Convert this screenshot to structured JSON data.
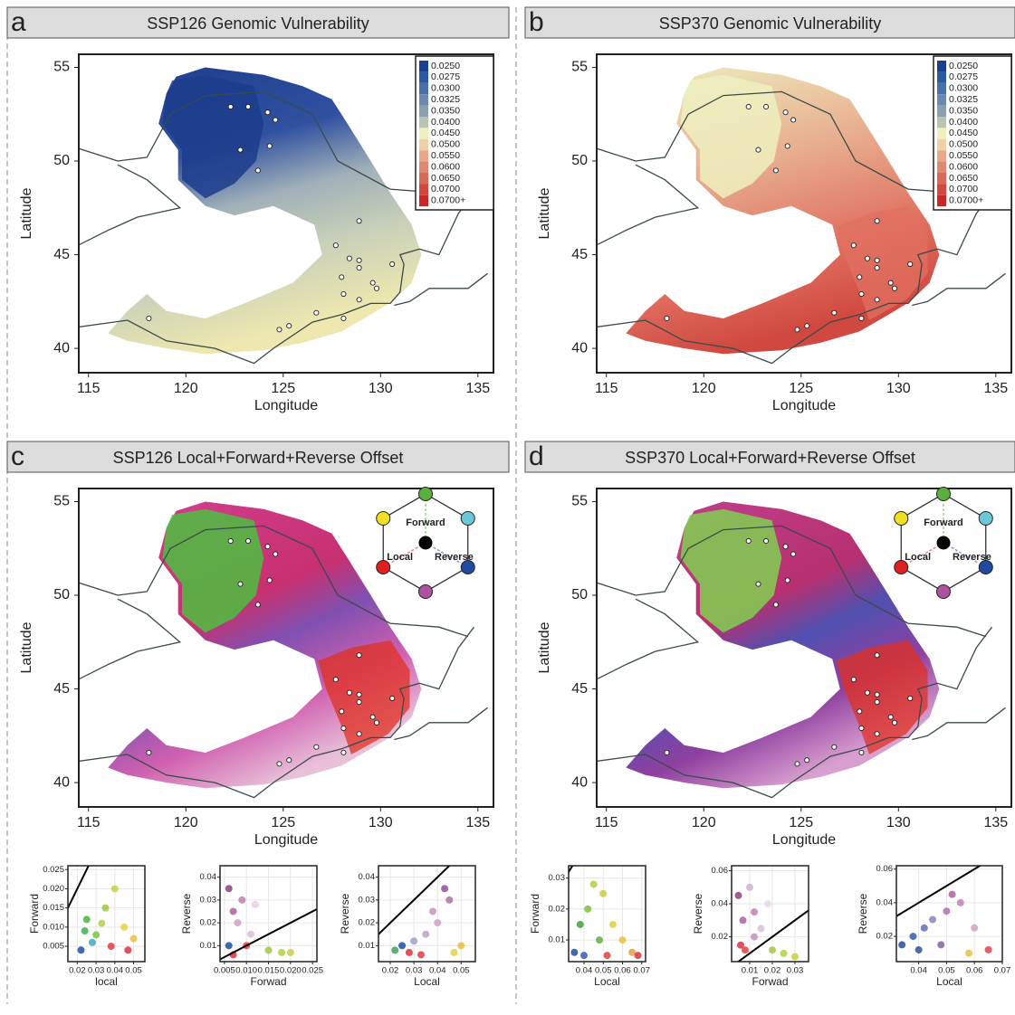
{
  "chart_data": [
    {
      "type": "map",
      "letter": "a",
      "title": "SSP126 Genomic Vulnerability",
      "xlabel": "Longitude",
      "ylabel": "Latitude",
      "xlim": [
        114.5,
        135.8
      ],
      "ylim": [
        38.7,
        55.7
      ],
      "xticks": [
        115,
        120,
        125,
        130,
        135
      ],
      "yticks": [
        40,
        45,
        50,
        55
      ],
      "sites": {
        "x": [
          122.3,
          123.2,
          124.2,
          124.6,
          122.8,
          124.3,
          123.7,
          128.9,
          127.7,
          128.4,
          128.9,
          128.9,
          128.0,
          130.6,
          128.1,
          129.6,
          129.8,
          128.9,
          118.1,
          125.3,
          124.8,
          128.1,
          126.7
        ],
        "y": [
          52.9,
          52.9,
          52.6,
          52.2,
          50.6,
          50.8,
          49.5,
          46.8,
          45.5,
          44.8,
          44.7,
          44.3,
          43.8,
          44.5,
          42.9,
          43.5,
          43.2,
          42.6,
          41.6,
          41.2,
          41.0,
          41.6,
          41.9
        ]
      },
      "legend": [
        {
          "label": "0.0250",
          "color": "#1a3f8f"
        },
        {
          "label": "0.0275",
          "color": "#2a5aa0"
        },
        {
          "label": "0.0300",
          "color": "#4a70a8"
        },
        {
          "label": "0.0325",
          "color": "#6a88b0"
        },
        {
          "label": "0.0350",
          "color": "#8aa0b0"
        },
        {
          "label": "0.0400",
          "color": "#b8c4b0"
        },
        {
          "label": "0.0450",
          "color": "#eef0c0"
        },
        {
          "label": "0.0500",
          "color": "#f0d0a8"
        },
        {
          "label": "0.0550",
          "color": "#e8a888"
        },
        {
          "label": "0.0600",
          "color": "#e08870"
        },
        {
          "label": "0.0650",
          "color": "#d86858"
        },
        {
          "label": "0.0700",
          "color": "#d04840"
        },
        {
          "label": "0.0700+",
          "color": "#c82828"
        }
      ]
    },
    {
      "type": "map",
      "letter": "b",
      "title": "SSP370  Genomic Vulnerability",
      "xlabel": "Longitude",
      "ylabel": "Latitude",
      "xlim": [
        114.5,
        135.8
      ],
      "ylim": [
        38.7,
        55.7
      ],
      "xticks": [
        115,
        120,
        125,
        130,
        135
      ],
      "yticks": [
        40,
        45,
        50,
        55
      ],
      "legend": [
        {
          "label": "0.0250",
          "color": "#1a3f8f"
        },
        {
          "label": "0.0275",
          "color": "#2a5aa0"
        },
        {
          "label": "0.0300",
          "color": "#4a70a8"
        },
        {
          "label": "0.0325",
          "color": "#6a88b0"
        },
        {
          "label": "0.0350",
          "color": "#8aa0b0"
        },
        {
          "label": "0.0400",
          "color": "#b8c4b0"
        },
        {
          "label": "0.0450",
          "color": "#eef0c0"
        },
        {
          "label": "0.0500",
          "color": "#f0d0a8"
        },
        {
          "label": "0.0550",
          "color": "#e8a888"
        },
        {
          "label": "0.0600",
          "color": "#e08870"
        },
        {
          "label": "0.0650",
          "color": "#d86858"
        },
        {
          "label": "0.0700",
          "color": "#d04840"
        },
        {
          "label": "0.0700+",
          "color": "#c82828"
        }
      ]
    },
    {
      "type": "map",
      "letter": "c",
      "title": "SSP126 Local+Forward+Reverse Offset",
      "xlabel": "Longitude",
      "ylabel": "Latitude",
      "xlim": [
        114.5,
        135.8
      ],
      "ylim": [
        38.7,
        55.7
      ],
      "xticks": [
        115,
        120,
        125,
        130,
        135
      ],
      "yticks": [
        40,
        45,
        50,
        55
      ],
      "key": [
        "Forward",
        "Local",
        "Reverse"
      ],
      "scatters": [
        {
          "type": "scatter",
          "xlabel": "local",
          "ylabel": "Forward",
          "xlim": [
            0.015,
            0.056
          ],
          "ylim": [
            0.001,
            0.026
          ],
          "xticks": [
            0.02,
            0.03,
            0.04,
            0.05
          ],
          "yticks": [
            0.005,
            {
              "value": 0.01,
              "label": "0.010"
            },
            0.015,
            {
              "value": 0.02,
              "label": "0.020"
            },
            0.025
          ],
          "x": [
            0.022,
            0.025,
            0.03,
            0.035,
            0.04,
            0.045,
            0.05,
            0.028,
            0.038,
            0.033,
            0.024,
            0.047
          ],
          "y": [
            0.004,
            0.012,
            0.008,
            0.015,
            0.02,
            0.01,
            0.007,
            0.006,
            0.005,
            0.011,
            0.009,
            0.004
          ],
          "colors": [
            "#2050a0",
            "#50b040",
            "#80c040",
            "#a0c840",
            "#c8d040",
            "#e8d040",
            "#e8c040",
            "#40a8c0",
            "#e04040",
            "#b0d040",
            "#3cb050",
            "#e03040"
          ]
        },
        {
          "type": "scatter",
          "xlabel": "Forwad",
          "ylabel": "Reverse",
          "xlim": [
            0.004,
            0.026
          ],
          "ylim": [
            0.003,
            0.045
          ],
          "xticks": [
            0.005,
            {
              "value": 0.01,
              "label": "0.010"
            },
            0.015,
            {
              "value": 0.02,
              "label": "0.020"
            },
            0.025
          ],
          "yticks": [
            0.01,
            0.02,
            0.03,
            0.04
          ],
          "x": [
            0.006,
            0.007,
            0.008,
            0.009,
            0.01,
            0.012,
            0.015,
            0.018,
            0.007,
            0.011,
            0.02,
            0.006
          ],
          "y": [
            0.035,
            0.025,
            0.02,
            0.03,
            0.01,
            0.028,
            0.008,
            0.007,
            0.006,
            0.015,
            0.007,
            0.01
          ],
          "colors": [
            "#904080",
            "#b060a0",
            "#d0a0c8",
            "#c080b0",
            "#e04040",
            "#e8d0e0",
            "#a0c840",
            "#b0d040",
            "#e03040",
            "#d8c0d8",
            "#c8d040",
            "#2050a0"
          ]
        },
        {
          "type": "scatter",
          "xlabel": "Local",
          "ylabel": "Reverse",
          "xlim": [
            0.015,
            0.056
          ],
          "ylim": [
            0.003,
            0.045
          ],
          "xticks": [
            0.02,
            0.03,
            0.04,
            0.05
          ],
          "yticks": [
            0.01,
            0.02,
            0.03,
            0.04
          ],
          "x": [
            0.022,
            0.025,
            0.03,
            0.035,
            0.04,
            0.045,
            0.05,
            0.028,
            0.038,
            0.043,
            0.033,
            0.047
          ],
          "y": [
            0.008,
            0.01,
            0.012,
            0.015,
            0.02,
            0.03,
            0.01,
            0.007,
            0.025,
            0.035,
            0.006,
            0.007
          ],
          "colors": [
            "#40a060",
            "#2050a0",
            "#a0a0c8",
            "#c0a0c8",
            "#d0a0c8",
            "#b070a8",
            "#e8c040",
            "#e03040",
            "#c890c0",
            "#9050a0",
            "#e04040",
            "#e8d040"
          ]
        }
      ]
    },
    {
      "type": "map",
      "letter": "d",
      "title": "SSP370  Local+Forward+Reverse Offset",
      "xlabel": "Longitude",
      "ylabel": "Latitude",
      "xlim": [
        114.5,
        135.8
      ],
      "ylim": [
        38.7,
        55.7
      ],
      "xticks": [
        115,
        120,
        125,
        130,
        135
      ],
      "yticks": [
        40,
        45,
        50,
        55
      ],
      "key": [
        "Forward",
        "Local",
        "Reverse"
      ],
      "scatters": [
        {
          "type": "scatter",
          "xlabel": "Local",
          "ylabel": "Forward",
          "xlim": [
            0.032,
            0.072
          ],
          "ylim": [
            0.003,
            0.034
          ],
          "xticks": [
            0.04,
            0.05,
            0.06,
            0.07
          ],
          "yticks": [
            0.01,
            0.02,
            0.03
          ],
          "x": [
            0.035,
            0.038,
            0.042,
            0.045,
            0.05,
            0.055,
            0.06,
            0.065,
            0.04,
            0.048,
            0.052,
            0.068
          ],
          "y": [
            0.006,
            0.015,
            0.02,
            0.028,
            0.025,
            0.015,
            0.01,
            0.006,
            0.005,
            0.01,
            0.005,
            0.005
          ],
          "colors": [
            "#2050a0",
            "#40a040",
            "#80c040",
            "#b0d040",
            "#c8d040",
            "#e0d040",
            "#e8c040",
            "#e8a040",
            "#3060b0",
            "#60b040",
            "#e04040",
            "#e03040"
          ]
        },
        {
          "type": "scatter",
          "xlabel": "Forwad",
          "ylabel": "Reverse",
          "xlim": [
            0.002,
            0.036
          ],
          "ylim": [
            0.005,
            0.063
          ],
          "xticks": [
            0.01,
            0.02,
            0.03
          ],
          "yticks": [
            0.02,
            0.04,
            0.06
          ],
          "x": [
            0.005,
            0.007,
            0.01,
            0.012,
            0.015,
            0.02,
            0.025,
            0.008,
            0.006,
            0.018,
            0.012,
            0.03
          ],
          "y": [
            0.045,
            0.03,
            0.05,
            0.035,
            0.025,
            0.012,
            0.01,
            0.012,
            0.015,
            0.04,
            0.02,
            0.008
          ],
          "colors": [
            "#904080",
            "#b060a0",
            "#d0b0d0",
            "#c080b0",
            "#d8c0d8",
            "#a0c840",
            "#b0d040",
            "#e04040",
            "#e03040",
            "#e8d8e8",
            "#c090c0",
            "#c8d040"
          ]
        },
        {
          "type": "scatter",
          "xlabel": "Local",
          "ylabel": "Reverse",
          "xlim": [
            0.032,
            0.07
          ],
          "ylim": [
            0.005,
            0.062
          ],
          "xticks": [
            0.04,
            0.05,
            0.06,
            0.07
          ],
          "yticks": [
            0.02,
            0.04,
            0.06
          ],
          "x": [
            0.034,
            0.038,
            0.042,
            0.045,
            0.05,
            0.055,
            0.06,
            0.065,
            0.048,
            0.052,
            0.058,
            0.04
          ],
          "y": [
            0.015,
            0.02,
            0.025,
            0.03,
            0.035,
            0.04,
            0.025,
            0.012,
            0.015,
            0.045,
            0.01,
            0.012
          ],
          "colors": [
            "#2050a0",
            "#3060b0",
            "#6070b8",
            "#9080c0",
            "#b070b0",
            "#c080b8",
            "#d0a0c8",
            "#e04050",
            "#8060a8",
            "#b060a0",
            "#e8c040",
            "#3050a0"
          ]
        }
      ]
    }
  ]
}
